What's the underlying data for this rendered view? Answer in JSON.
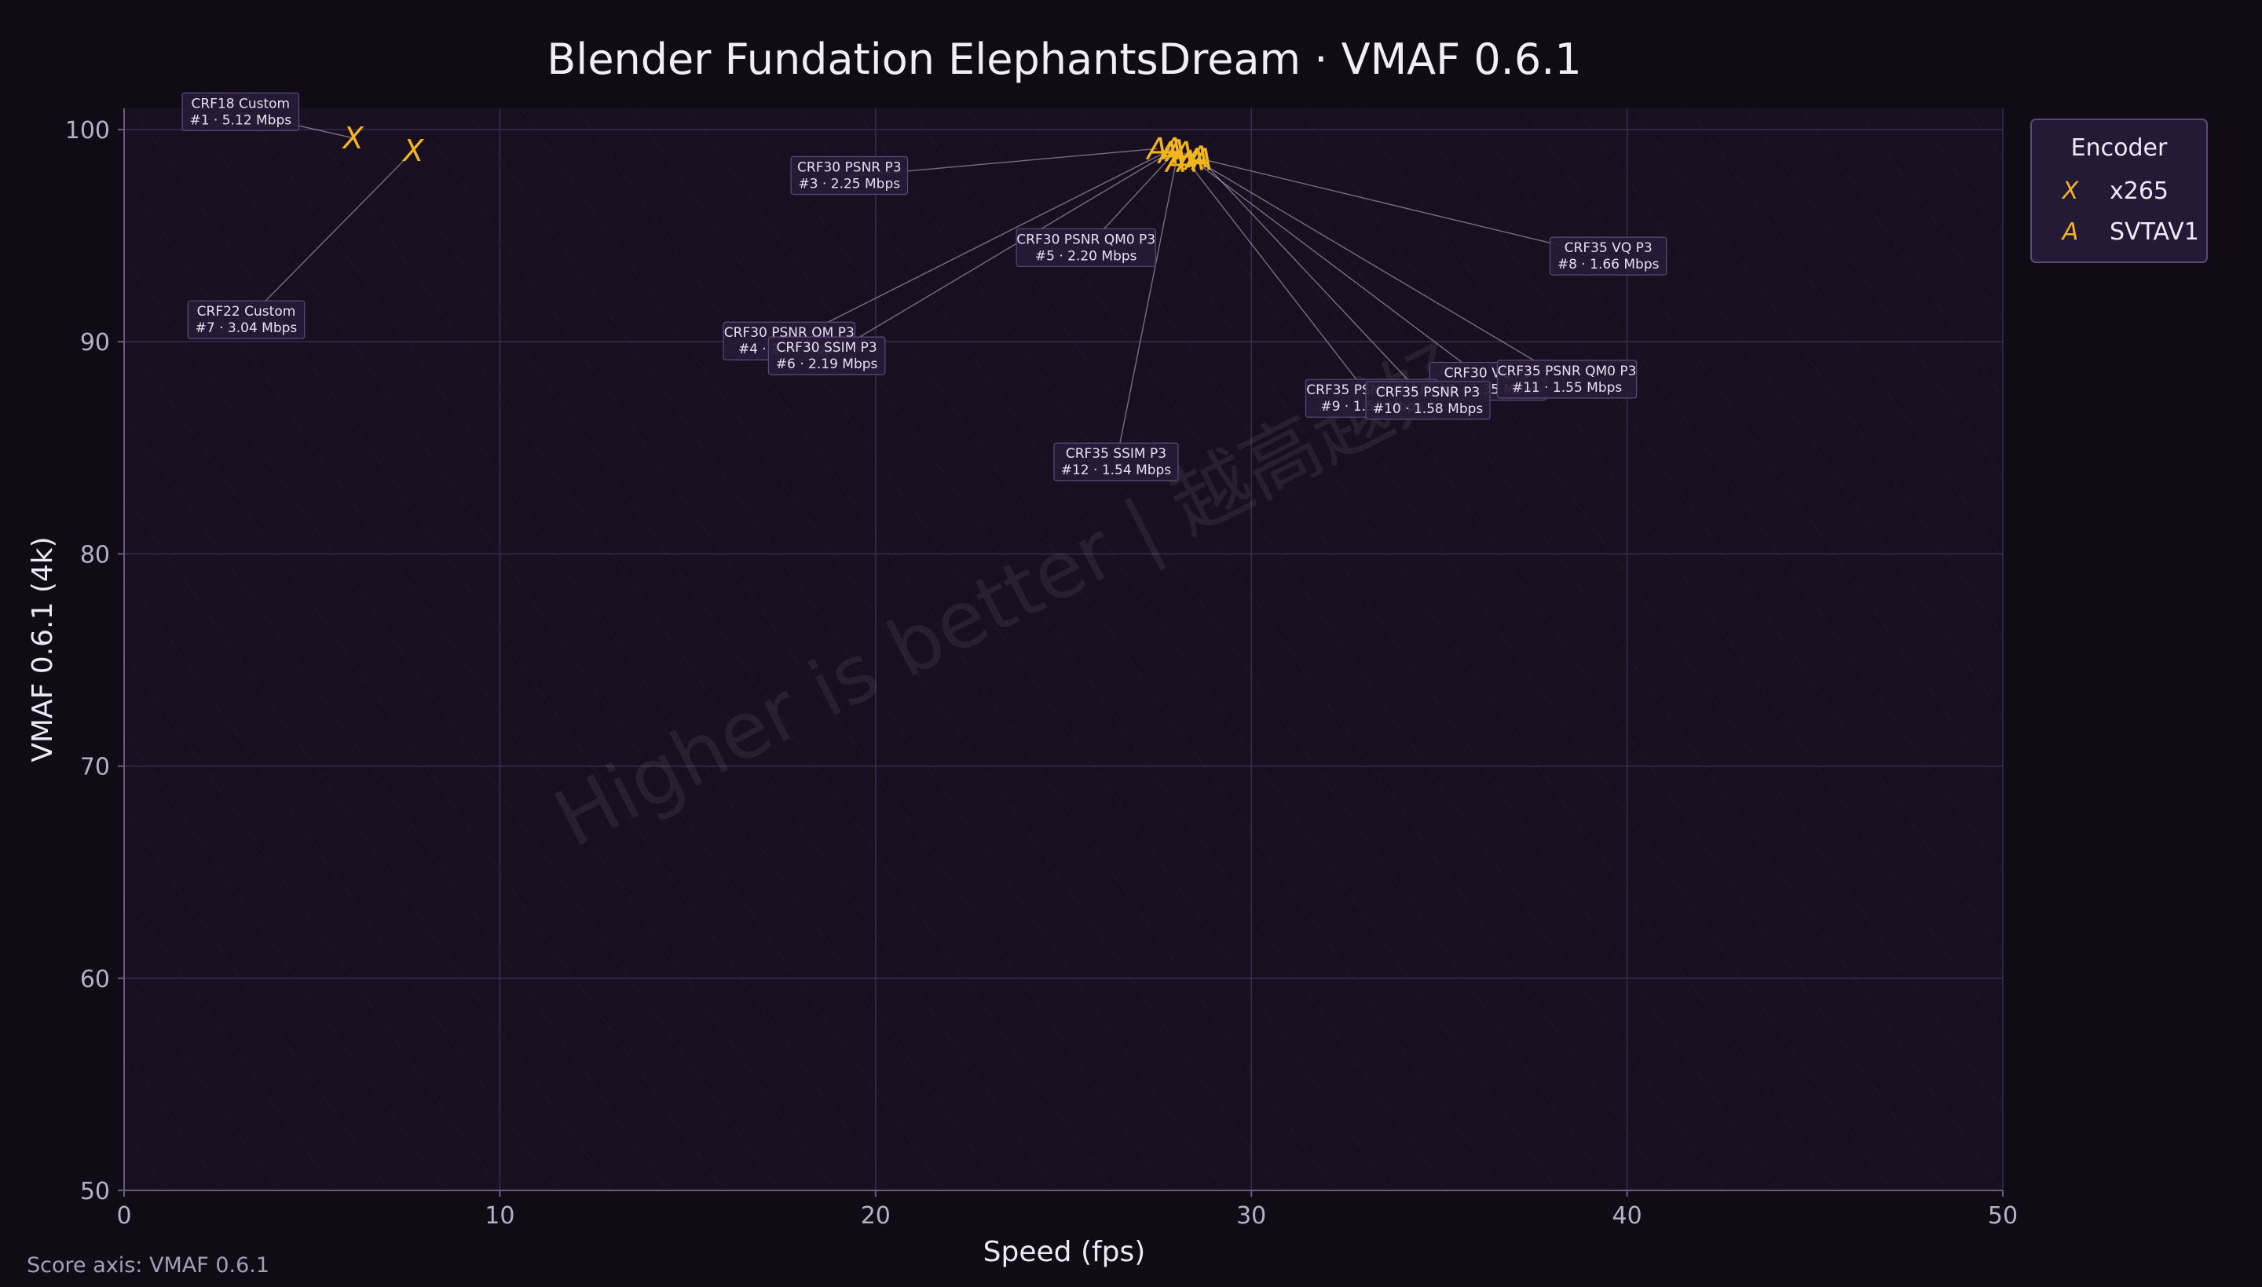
{
  "chart_data": {
    "type": "scatter",
    "title": "Blender Fundation ElephantsDream · VMAF 0.6.1",
    "xlabel": "Speed (fps)",
    "ylabel": "VMAF 0.6.1 (4k)",
    "xlim": [
      0,
      50
    ],
    "ylim": [
      50,
      101
    ],
    "xticks": [
      0,
      10,
      20,
      30,
      40,
      50
    ],
    "yticks": [
      50,
      60,
      70,
      80,
      90,
      100
    ],
    "grid": true,
    "legend": {
      "title": "Encoder",
      "position": "outside-right-top",
      "entries": [
        {
          "name": "x265",
          "marker": "X"
        },
        {
          "name": "SVTAV1",
          "marker": "A"
        }
      ]
    },
    "marker_color": "#f2b51e",
    "watermark": "Higher is better  |  越高越好",
    "footer": "Score axis: VMAF 0.6.1",
    "series": [
      {
        "name": "x265",
        "marker": "X",
        "points": [
          {
            "x": 6.1,
            "y": 99.6,
            "label": "CRF18 Custom",
            "sub": "#1 · 5.12 Mbps",
            "lx": 3.1,
            "ly": 100.8
          },
          {
            "x": 7.7,
            "y": 99.0,
            "label": "CRF22 Custom",
            "sub": "#7 · 3.04 Mbps",
            "lx": 3.25,
            "ly": 91.0
          }
        ]
      },
      {
        "name": "SVTAV1",
        "marker": "A",
        "points": [
          {
            "x": 27.5,
            "y": 99.1,
            "label": "CRF30 PSNR P3",
            "sub": "#3 · 2.25 Mbps",
            "lx": 19.3,
            "ly": 97.8
          },
          {
            "x": 28.2,
            "y": 98.9,
            "label": "CRF30 VQ P3",
            "sub": "#2 · 2.35 Mbps",
            "lx": 36.3,
            "ly": 88.1
          },
          {
            "x": 27.9,
            "y": 99.1,
            "label": "CRF30 PSNR QM P3",
            "sub": "#4 · 2.24 Mbps",
            "lx": 17.7,
            "ly": 90.0
          },
          {
            "x": 28.0,
            "y": 99.0,
            "label": "CRF30 PSNR QM0 P3",
            "sub": "#5 · 2.20 Mbps",
            "lx": 25.6,
            "ly": 94.4
          },
          {
            "x": 27.8,
            "y": 98.9,
            "label": "CRF30 SSIM P3",
            "sub": "#6 · 2.19 Mbps",
            "lx": 18.7,
            "ly": 89.3
          },
          {
            "x": 28.7,
            "y": 98.6,
            "label": "CRF35 VQ P3",
            "sub": "#8 · 1.66 Mbps",
            "lx": 39.5,
            "ly": 94.0
          },
          {
            "x": 28.3,
            "y": 98.5,
            "label": "CRF35 PSNR QM P3",
            "sub": "#9 · 1.58 Mbps",
            "lx": 33.2,
            "ly": 87.3
          },
          {
            "x": 28.6,
            "y": 98.7,
            "label": "CRF35 PSNR P3",
            "sub": "#10 · 1.58 Mbps",
            "lx": 34.7,
            "ly": 87.2
          },
          {
            "x": 28.5,
            "y": 98.6,
            "label": "CRF35 PSNR QM0 P3",
            "sub": "#11 · 1.55 Mbps",
            "lx": 38.4,
            "ly": 88.2
          },
          {
            "x": 28.0,
            "y": 98.5,
            "label": "CRF35 SSIM P3",
            "sub": "#12 · 1.54 Mbps",
            "lx": 26.4,
            "ly": 84.3
          }
        ]
      }
    ]
  }
}
